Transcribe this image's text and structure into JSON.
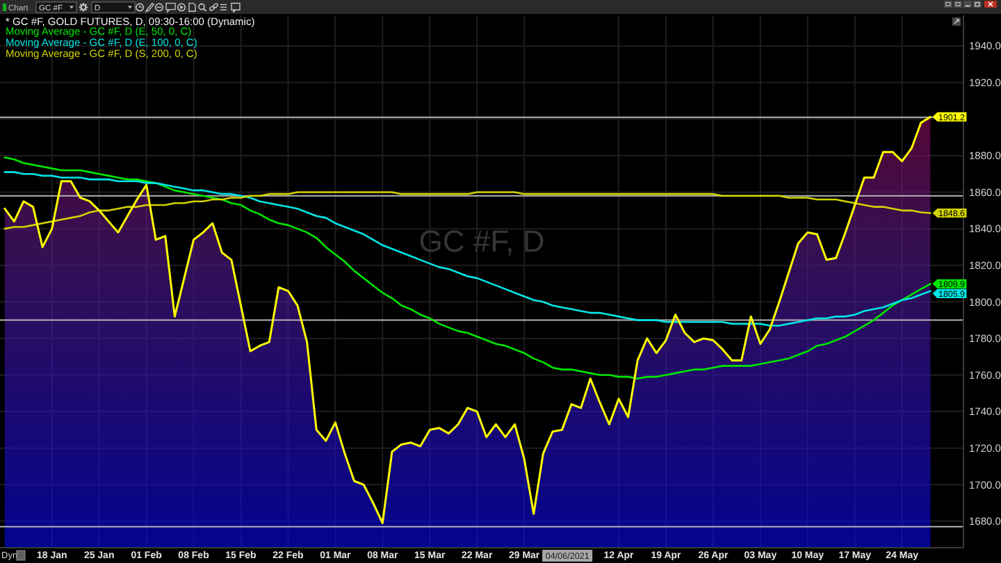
{
  "chart_data": {
    "type": "area",
    "title": "* GC #F, GOLD FUTURES, D, 09:30-16:00 (Dynamic)",
    "annotations": [
      "GC #F, D",
      "Chart",
      "GC #F",
      "D",
      "Dyn",
      "04/06/2021"
    ],
    "categories": [
      null,
      null,
      null,
      null,
      null,
      "18 Jan",
      null,
      null,
      null,
      null,
      "25 Jan",
      null,
      null,
      null,
      null,
      "01 Feb",
      null,
      null,
      null,
      null,
      "08 Feb",
      null,
      null,
      null,
      null,
      "15 Feb",
      null,
      null,
      null,
      null,
      "22 Feb",
      null,
      null,
      null,
      null,
      "01 Mar",
      null,
      null,
      null,
      null,
      "08 Mar",
      null,
      null,
      null,
      null,
      "15 Mar",
      null,
      null,
      null,
      null,
      "22 Mar",
      null,
      null,
      null,
      null,
      "29 Mar",
      null,
      null,
      null,
      null,
      null,
      null,
      null,
      null,
      null,
      "12 Apr",
      null,
      null,
      null,
      null,
      "19 Apr",
      null,
      null,
      null,
      null,
      "26 Apr",
      null,
      null,
      null,
      null,
      "03 May",
      null,
      null,
      null,
      null,
      "10 May",
      null,
      null,
      null,
      null,
      "17 May",
      null,
      null,
      null,
      null,
      "24 May",
      null,
      null,
      null
    ],
    "series": [
      {
        "color": "#ffff00",
        "values": [
          1851,
          1844,
          1855,
          1852,
          1830,
          1840,
          1866,
          1866,
          1857,
          1855,
          1850,
          1844,
          1838,
          1847,
          1856,
          1864,
          1834,
          1836,
          1792,
          1813,
          1834,
          1838,
          1843,
          1827,
          1823,
          1798,
          1773,
          1776,
          1778,
          1808,
          1806,
          1798,
          1778,
          1730,
          1724,
          1734,
          1717,
          1702,
          1700,
          1690,
          1679,
          1718,
          1722,
          1723,
          1721,
          1730,
          1731,
          1728,
          1733,
          1742,
          1740,
          1726,
          1733,
          1726,
          1733,
          1714,
          1684,
          1717,
          1729,
          1730,
          1744,
          1742,
          1758,
          1745,
          1733,
          1747,
          1737,
          1768,
          1780,
          1772,
          1779,
          1793,
          1783,
          1778,
          1780,
          1779,
          1774,
          1768,
          1768,
          1792,
          1777,
          1785,
          1800,
          1816,
          1832,
          1838,
          1837,
          1823,
          1824,
          1838,
          1853,
          1868,
          1868,
          1882,
          1882,
          1877,
          1884,
          1898,
          1901.2
        ],
        "value_labels": [
          null,
          null,
          null,
          null,
          null,
          null,
          null,
          null,
          null,
          null,
          null,
          null,
          null,
          null,
          null,
          null,
          null,
          null,
          null,
          null,
          null,
          null,
          null,
          null,
          null,
          null,
          null,
          null,
          null,
          null,
          null,
          null,
          null,
          null,
          null,
          null,
          null,
          null,
          null,
          null,
          null,
          null,
          null,
          null,
          null,
          null,
          null,
          null,
          null,
          null,
          null,
          null,
          null,
          null,
          null,
          null,
          null,
          null,
          null,
          null,
          null,
          null,
          null,
          null,
          null,
          null,
          null,
          null,
          null,
          null,
          null,
          null,
          null,
          null,
          null,
          null,
          null,
          null,
          null,
          null,
          null,
          null,
          null,
          null,
          null,
          null,
          null,
          null,
          null,
          null,
          null,
          null,
          null,
          null,
          null,
          null,
          null,
          null,
          "1901.2"
        ]
      },
      {
        "type": "line",
        "name": "Moving Average - GC #F, D (E, 50, 0, C)",
        "color": "#00e600",
        "values": [
          1879,
          1878,
          1876,
          1875,
          1874,
          1873,
          1872,
          1872,
          1872,
          1871,
          1870,
          1869,
          1868,
          1867,
          1867,
          1866,
          1865,
          1863,
          1861,
          1860,
          1859,
          1858,
          1857,
          1856,
          1854,
          1853,
          1850,
          1848,
          1845,
          1843,
          1842,
          1840,
          1838,
          1835,
          1830,
          1826,
          1822,
          1817,
          1813,
          1809,
          1805,
          1802,
          1798,
          1796,
          1793,
          1791,
          1788,
          1786,
          1784,
          1783,
          1781,
          1779,
          1777,
          1776,
          1774,
          1772,
          1769,
          1767,
          1764,
          1763,
          1763,
          1762,
          1761,
          1760,
          1760,
          1759,
          1759,
          1758,
          1759,
          1759,
          1760,
          1761,
          1762,
          1763,
          1763,
          1764,
          1765,
          1765,
          1765,
          1765,
          1766,
          1767,
          1768,
          1769,
          1771,
          1773,
          1776,
          1777,
          1779,
          1781,
          1784,
          1787,
          1790,
          1794,
          1798,
          1801,
          1804,
          1807,
          1809.9
        ],
        "value_labels": [
          null,
          null,
          null,
          null,
          null,
          null,
          null,
          null,
          null,
          null,
          null,
          null,
          null,
          null,
          null,
          null,
          null,
          null,
          null,
          null,
          null,
          null,
          null,
          null,
          null,
          null,
          null,
          null,
          null,
          null,
          null,
          null,
          null,
          null,
          null,
          null,
          null,
          null,
          null,
          null,
          null,
          null,
          null,
          null,
          null,
          null,
          null,
          null,
          null,
          null,
          null,
          null,
          null,
          null,
          null,
          null,
          null,
          null,
          null,
          null,
          null,
          null,
          null,
          null,
          null,
          null,
          null,
          null,
          null,
          null,
          null,
          null,
          null,
          null,
          null,
          null,
          null,
          null,
          null,
          null,
          null,
          null,
          null,
          null,
          null,
          null,
          null,
          null,
          null,
          null,
          null,
          null,
          null,
          null,
          null,
          null,
          null,
          null,
          "1809.9"
        ]
      },
      {
        "type": "line",
        "name": "Moving Average - GC #F, D (E, 100, 0, C)",
        "color": "#00e5e5",
        "values": [
          1871,
          1871,
          1870,
          1870,
          1869,
          1869,
          1868,
          1868,
          1868,
          1867,
          1867,
          1867,
          1866,
          1866,
          1866,
          1865,
          1865,
          1864,
          1863,
          1862,
          1861,
          1861,
          1860,
          1859,
          1859,
          1858,
          1857,
          1855,
          1854,
          1853,
          1852,
          1851,
          1849,
          1847,
          1846,
          1843,
          1841,
          1839,
          1837,
          1834,
          1831,
          1829,
          1827,
          1825,
          1823,
          1821,
          1819,
          1818,
          1816,
          1814,
          1813,
          1811,
          1809,
          1807,
          1805,
          1803,
          1801,
          1800,
          1798,
          1797,
          1796,
          1795,
          1794,
          1794,
          1793,
          1792,
          1791,
          1790,
          1790,
          1790,
          1789,
          1789,
          1789,
          1789,
          1789,
          1789,
          1789,
          1788,
          1788,
          1788,
          1788,
          1787,
          1787,
          1788,
          1789,
          1790,
          1791,
          1791,
          1792,
          1792,
          1793,
          1795,
          1796,
          1797,
          1799,
          1801,
          1802,
          1804,
          1805.9
        ],
        "value_labels": [
          null,
          null,
          null,
          null,
          null,
          null,
          null,
          null,
          null,
          null,
          null,
          null,
          null,
          null,
          null,
          null,
          null,
          null,
          null,
          null,
          null,
          null,
          null,
          null,
          null,
          null,
          null,
          null,
          null,
          null,
          null,
          null,
          null,
          null,
          null,
          null,
          null,
          null,
          null,
          null,
          null,
          null,
          null,
          null,
          null,
          null,
          null,
          null,
          null,
          null,
          null,
          null,
          null,
          null,
          null,
          null,
          null,
          null,
          null,
          null,
          null,
          null,
          null,
          null,
          null,
          null,
          null,
          null,
          null,
          null,
          null,
          null,
          null,
          null,
          null,
          null,
          null,
          null,
          null,
          null,
          null,
          null,
          null,
          null,
          null,
          null,
          null,
          null,
          null,
          null,
          null,
          null,
          null,
          null,
          null,
          null,
          null,
          null,
          "1805.9"
        ]
      },
      {
        "type": "line",
        "name": "Moving Average - GC #F, D (S, 200, 0, C)",
        "color": "#d2d200",
        "values": [
          1840,
          1841,
          1841,
          1842,
          1843,
          1844,
          1845,
          1846,
          1847,
          1849,
          1850,
          1850,
          1851,
          1852,
          1852,
          1853,
          1853,
          1853,
          1854,
          1854,
          1855,
          1855,
          1856,
          1856,
          1857,
          1857,
          1858,
          1858,
          1859,
          1859,
          1859,
          1860,
          1860,
          1860,
          1860,
          1860,
          1860,
          1860,
          1860,
          1860,
          1860,
          1860,
          1859,
          1859,
          1859,
          1859,
          1859,
          1859,
          1859,
          1859,
          1860,
          1860,
          1860,
          1860,
          1860,
          1859,
          1859,
          1859,
          1859,
          1859,
          1859,
          1859,
          1859,
          1859,
          1859,
          1859,
          1859,
          1859,
          1859,
          1859,
          1859,
          1859,
          1859,
          1859,
          1859,
          1859,
          1858,
          1858,
          1858,
          1858,
          1858,
          1858,
          1858,
          1857,
          1857,
          1857,
          1856,
          1856,
          1856,
          1855,
          1854,
          1853,
          1852,
          1852,
          1851,
          1850,
          1850,
          1849,
          1848.6
        ],
        "value_labels": [
          null,
          null,
          null,
          null,
          null,
          null,
          null,
          null,
          null,
          null,
          null,
          null,
          null,
          null,
          null,
          null,
          null,
          null,
          null,
          null,
          null,
          null,
          null,
          null,
          null,
          null,
          null,
          null,
          null,
          null,
          null,
          null,
          null,
          null,
          null,
          null,
          null,
          null,
          null,
          null,
          null,
          null,
          null,
          null,
          null,
          null,
          null,
          null,
          null,
          null,
          null,
          null,
          null,
          null,
          null,
          null,
          null,
          null,
          null,
          null,
          null,
          null,
          null,
          null,
          null,
          null,
          null,
          null,
          null,
          null,
          null,
          null,
          null,
          null,
          null,
          null,
          null,
          null,
          null,
          null,
          null,
          null,
          null,
          null,
          null,
          null,
          null,
          null,
          null,
          null,
          null,
          null,
          null,
          null,
          null,
          null,
          null,
          null,
          "1848.6"
        ]
      }
    ],
    "ylim": [
      1665.5,
      1956.8
    ],
    "yticks": [
      {
        "value": 1680,
        "label": "1680.0"
      },
      {
        "value": 1700,
        "label": "1700.0"
      },
      {
        "value": 1720,
        "label": "1720.0"
      },
      {
        "value": 1740,
        "label": "1740.0"
      },
      {
        "value": 1760,
        "label": "1760.0"
      },
      {
        "value": 1780,
        "label": "1780.0"
      },
      {
        "value": 1800,
        "label": "1800.0"
      },
      {
        "value": 1820,
        "label": "1820.0"
      },
      {
        "value": 1840,
        "label": "1840.0"
      },
      {
        "value": 1860,
        "label": "1860.0"
      },
      {
        "value": 1880,
        "label": "1880.0"
      },
      {
        "value": 1900,
        "label": null
      },
      {
        "value": 1920,
        "label": "1920.0"
      },
      {
        "value": 1940,
        "label": "1940.0"
      }
    ],
    "ref_lines": [
      {
        "axis": "y",
        "value": 1901,
        "color": "#b4b4b4"
      },
      {
        "axis": "y",
        "value": 1858,
        "color": "#b4b4b4"
      },
      {
        "axis": "y",
        "value": 1790,
        "color": "#b4b4b4"
      },
      {
        "axis": "y",
        "value": 1677,
        "color": "#b4b4b4"
      }
    ],
    "grid": true,
    "legend": "top left"
  }
}
